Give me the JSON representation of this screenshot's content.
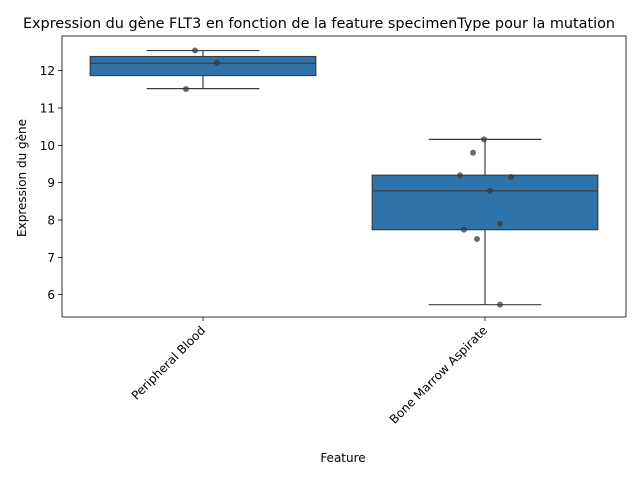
{
  "chart_data": {
    "type": "box",
    "title": "Expression du gène FLT3 en fonction de la feature specimenType pour la mutation",
    "xlabel": "Feature",
    "ylabel": "Expression du gène",
    "categories": [
      "Peripheral Blood",
      "Bone Marrow Aspirate"
    ],
    "ylim": [
      5.4,
      12.93
    ],
    "yticks": [
      6,
      7,
      8,
      9,
      10,
      11,
      12
    ],
    "grid": false,
    "colors": {
      "box": "#2f73ab",
      "line": "#3d3d3d",
      "point": "#3a3a3a"
    },
    "boxes": [
      {
        "category": "Peripheral Blood",
        "whisker_low": 11.52,
        "q1": 11.87,
        "median": 12.2,
        "q3": 12.38,
        "whisker_high": 12.54
      },
      {
        "category": "Bone Marrow Aspirate",
        "whisker_low": 5.73,
        "q1": 7.74,
        "median": 8.78,
        "q3": 9.2,
        "whisker_high": 10.16
      }
    ],
    "points": [
      {
        "category": "Peripheral Blood",
        "values": [
          12.54,
          12.21,
          11.51
        ]
      },
      {
        "category": "Bone Marrow Aspirate",
        "values": [
          10.16,
          9.8,
          9.2,
          9.15,
          8.78,
          7.9,
          7.74,
          7.49,
          5.73
        ]
      }
    ]
  }
}
